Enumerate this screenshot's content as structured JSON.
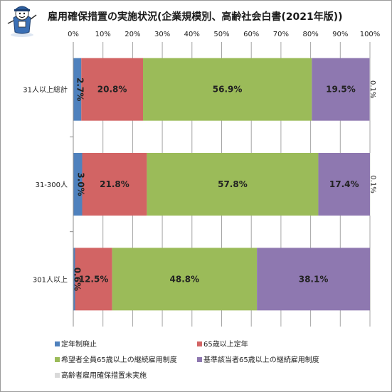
{
  "chart_data": {
    "type": "bar",
    "orientation": "horizontal",
    "stacked": "percent",
    "title": "雇用確保措置の実施状況(企業規模別、高齢社会白書(2021年版))",
    "xlabel": "",
    "ylabel": "",
    "xlim": [
      0,
      100
    ],
    "tick_labels": [
      "0%",
      "10%",
      "20%",
      "30%",
      "40%",
      "50%",
      "60%",
      "70%",
      "80%",
      "90%",
      "100%"
    ],
    "categories": [
      "31人以上総計",
      "31-300人",
      "301人以上"
    ],
    "series": [
      {
        "name": "定年制廃止",
        "values": [
          2.7,
          3.0,
          0.6
        ],
        "labels": [
          "2.7%",
          "3.0%",
          "0.6%"
        ],
        "color": "#4f81bd"
      },
      {
        "name": "65歳以上定年",
        "values": [
          20.8,
          21.8,
          12.5
        ],
        "labels": [
          "20.8%",
          "21.8%",
          "12.5%"
        ],
        "color": "#d26464"
      },
      {
        "name": "希望者全員65歳以上の継続雇用制度",
        "values": [
          56.9,
          57.8,
          48.8
        ],
        "labels": [
          "56.9%",
          "57.8%",
          "48.8%"
        ],
        "color": "#9bbb59"
      },
      {
        "name": "基準該当者65歳以上の継続雇用制度",
        "values": [
          19.5,
          17.4,
          38.1
        ],
        "labels": [
          "19.5%",
          "17.4%",
          "38.1%"
        ],
        "color": "#8e78b0"
      },
      {
        "name": "高齢者雇用確保措置未実施",
        "values": [
          0.1,
          0.1,
          0.0
        ],
        "labels": [
          "0.1%",
          "0.1%",
          ""
        ],
        "color": "#d9d9d9"
      }
    ],
    "grid": true,
    "legend_position": "bottom"
  }
}
